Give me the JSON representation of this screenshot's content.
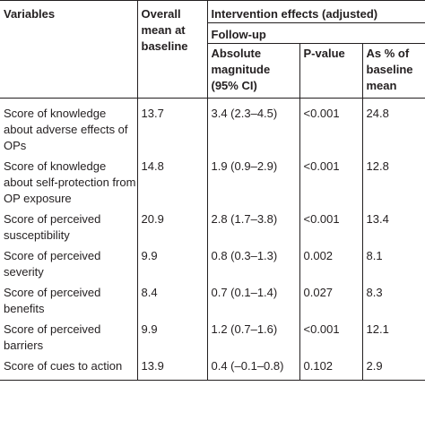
{
  "header": {
    "variables": "Variables",
    "overall_mean": "Overall mean at baseline",
    "intervention": "Intervention effects (adjusted)",
    "follow_up": "Follow-up",
    "absolute": "Absolute magnitude (95% CI)",
    "p_value": "P-value",
    "pct_baseline": "As % of baseline mean"
  },
  "rows": [
    {
      "variable": "Score of knowledge about adverse effects of OPs",
      "mean": "13.7",
      "magnitude": "3.4 (2.3–4.5)",
      "p": "<0.001",
      "pct": "24.8"
    },
    {
      "variable": "Score of knowledge about self-protection from OP exposure",
      "mean": "14.8",
      "magnitude": "1.9 (0.9–2.9)",
      "p": "<0.001",
      "pct": "12.8"
    },
    {
      "variable": "Score of perceived susceptibility",
      "mean": "20.9",
      "magnitude": "2.8 (1.7–3.8)",
      "p": "<0.001",
      "pct": "13.4"
    },
    {
      "variable": "Score of perceived severity",
      "mean": "9.9",
      "magnitude": "0.8 (0.3–1.3)",
      "p": "0.002",
      "pct": "8.1"
    },
    {
      "variable": "Score of perceived benefits",
      "mean": "8.4",
      "magnitude": "0.7 (0.1–1.4)",
      "p": "0.027",
      "pct": "8.3"
    },
    {
      "variable": "Score of perceived barriers",
      "mean": "9.9",
      "magnitude": "1.2 (0.7–1.6)",
      "p": "<0.001",
      "pct": "12.1"
    },
    {
      "variable": "Score of cues to action",
      "mean": "13.9",
      "magnitude": "0.4 (–0.1–0.8)",
      "p": "0.102",
      "pct": "2.9"
    }
  ]
}
